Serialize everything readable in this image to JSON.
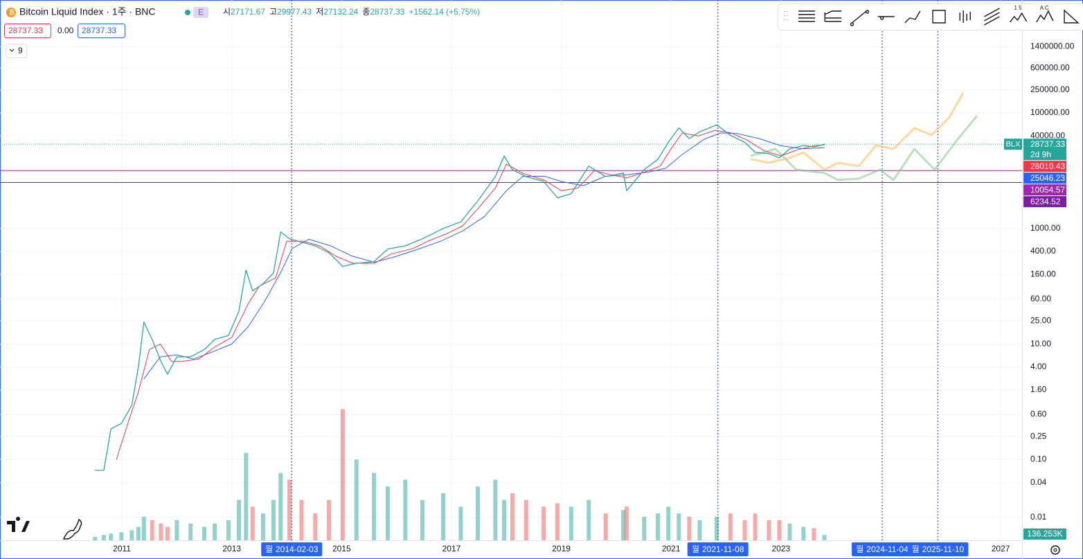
{
  "header": {
    "symbol": "Bitcoin Liquid Index · 1주 · BNC",
    "badge": "E",
    "ohlc": [
      {
        "key": "시",
        "value": "27171.67"
      },
      {
        "key": "고",
        "value": "29977.43"
      },
      {
        "key": "저",
        "value": "27132.24"
      },
      {
        "key": "종",
        "value": "28737.33"
      }
    ],
    "change": "+1562.14 (+5.75%)"
  },
  "inputs": [
    "28737.33",
    "0.00",
    "28737.33"
  ],
  "indicators_badge": "9",
  "toolbar": {
    "labels": [
      "1 5",
      "A C"
    ]
  },
  "chart_data": {
    "type": "line",
    "log": true,
    "grid": true,
    "xlim": [
      2008.78,
      2027.39
    ],
    "ylim": [
      0.004,
      9000000
    ],
    "xticks": [
      2011,
      2013,
      2015,
      2017,
      2019,
      2021,
      2023,
      2027
    ],
    "yticks": [
      {
        "value": 1400000,
        "label": "1400000.00"
      },
      {
        "value": 600000,
        "label": "600000.00"
      },
      {
        "value": 250000,
        "label": "250000.00"
      },
      {
        "value": 100000,
        "label": "100000.00"
      },
      {
        "value": 40000,
        "label": "40000.00"
      },
      {
        "value": 1000,
        "label": "1000.00"
      },
      {
        "value": 400,
        "label": "400.00"
      },
      {
        "value": 160,
        "label": "160.00"
      },
      {
        "value": 60,
        "label": "60.00"
      },
      {
        "value": 25,
        "label": "25.00"
      },
      {
        "value": 10,
        "label": "10.00"
      },
      {
        "value": 4,
        "label": "4.00"
      },
      {
        "value": 1.6,
        "label": "1.60"
      },
      {
        "value": 0.6,
        "label": "0.60"
      },
      {
        "value": 0.25,
        "label": "0.25"
      },
      {
        "value": 0.1,
        "label": "0.10"
      },
      {
        "value": 0.04,
        "label": "0.04"
      },
      {
        "value": 0.01,
        "label": "0.01"
      }
    ],
    "series": [
      {
        "name": "BLX",
        "color": "#26a69a",
        "width": 1.3,
        "x": [
          2010.51,
          2010.67,
          2010.8,
          2010.99,
          2011.18,
          2011.3,
          2011.4,
          2011.55,
          2011.71,
          2011.83,
          2012.0,
          2012.25,
          2012.5,
          2012.69,
          2012.94,
          2013.13,
          2013.26,
          2013.38,
          2013.57,
          2013.76,
          2013.89,
          2014.05,
          2014.27,
          2014.52,
          2014.77,
          2015.02,
          2015.27,
          2015.59,
          2015.84,
          2016.16,
          2016.47,
          2016.85,
          2017.17,
          2017.48,
          2017.8,
          2017.96,
          2018.11,
          2018.36,
          2018.68,
          2018.93,
          2019.18,
          2019.5,
          2019.81,
          2020.13,
          2020.19,
          2020.51,
          2020.76,
          2020.95,
          2021.14,
          2021.33,
          2021.52,
          2021.83,
          2022.08,
          2022.34,
          2022.53,
          2022.78,
          2022.97,
          2023.16,
          2023.41,
          2023.6,
          2023.79
        ],
        "values": [
          0.065,
          0.065,
          0.34,
          0.42,
          0.87,
          4,
          24,
          12,
          5,
          3,
          6,
          6,
          8,
          12,
          14,
          37,
          190,
          83,
          110,
          170,
          870,
          660,
          580,
          500,
          380,
          220,
          250,
          265,
          440,
          500,
          660,
          1000,
          1300,
          3000,
          7900,
          18000,
          10400,
          7900,
          6500,
          3400,
          4000,
          12000,
          7900,
          9100,
          4500,
          10400,
          15800,
          31000,
          55000,
          36000,
          47000,
          62000,
          41000,
          31000,
          20700,
          19700,
          16700,
          23800,
          27300,
          25800,
          28737.33
        ]
      },
      {
        "color": "#f23645",
        "width": 1,
        "x": [
          2010.9,
          2011.1,
          2011.3,
          2011.5,
          2011.7,
          2011.9,
          2012.1,
          2012.4,
          2012.7,
          2013.0,
          2013.3,
          2013.5,
          2013.8,
          2014.0,
          2014.3,
          2014.6,
          2014.9,
          2015.2,
          2015.6,
          2015.9,
          2016.3,
          2016.6,
          2016.9,
          2017.2,
          2017.5,
          2017.8,
          2018.0,
          2018.3,
          2018.7,
          2019.0,
          2019.3,
          2019.6,
          2019.9,
          2020.2,
          2020.5,
          2020.8,
          2021.0,
          2021.2,
          2021.5,
          2021.8,
          2022.1,
          2022.4,
          2022.7,
          2023.0,
          2023.3,
          2023.6,
          2023.79
        ],
        "values": [
          0.1,
          0.4,
          1.5,
          8,
          10,
          5,
          5,
          5.5,
          9,
          13,
          50,
          100,
          140,
          600,
          600,
          500,
          330,
          250,
          250,
          360,
          450,
          620,
          800,
          1100,
          2300,
          5000,
          13000,
          9000,
          6800,
          4500,
          5000,
          10000,
          8500,
          7500,
          9300,
          12000,
          24000,
          45000,
          40000,
          50000,
          45000,
          33000,
          22000,
          18000,
          23000,
          27000,
          28010.43
        ]
      },
      {
        "color": "#2962ff",
        "width": 1,
        "x": [
          2011.4,
          2011.7,
          2012.0,
          2012.3,
          2012.6,
          2013.0,
          2013.3,
          2013.6,
          2013.9,
          2014.1,
          2014.4,
          2014.8,
          2015.2,
          2015.6,
          2016.0,
          2016.4,
          2016.8,
          2017.2,
          2017.6,
          2018.0,
          2018.3,
          2018.7,
          2019.0,
          2019.4,
          2019.8,
          2020.2,
          2020.6,
          2020.9,
          2021.2,
          2021.6,
          2021.9,
          2022.2,
          2022.6,
          2023.0,
          2023.4,
          2023.79
        ],
        "values": [
          2.5,
          6,
          6.5,
          5.5,
          7,
          10,
          20,
          55,
          180,
          450,
          650,
          500,
          330,
          260,
          330,
          440,
          600,
          900,
          1600,
          4500,
          8000,
          8000,
          6500,
          5500,
          8000,
          8500,
          9500,
          11000,
          19000,
          35000,
          45000,
          44000,
          36000,
          27000,
          24000,
          25046.23
        ]
      },
      {
        "color": "rgba(255,183,77,0.55)",
        "width": 3,
        "x": [
          2022.46,
          2022.78,
          2023.16,
          2023.41,
          2023.79,
          2024.04,
          2024.42,
          2024.73,
          2025.05,
          2025.43,
          2025.74,
          2026.06,
          2026.31
        ],
        "values": [
          15800,
          13700,
          16700,
          20700,
          10400,
          13700,
          12000,
          27400,
          23800,
          54600,
          41400,
          82500,
          216000
        ]
      },
      {
        "color": "rgba(129,199,132,0.55)",
        "width": 3,
        "x": [
          2022.46,
          2022.9,
          2023.28,
          2023.79,
          2024.04,
          2024.42,
          2024.8,
          2025.05,
          2025.43,
          2025.8,
          2026.18,
          2026.56
        ],
        "values": [
          18100,
          23800,
          10400,
          9100,
          6900,
          7300,
          10400,
          6900,
          23800,
          10400,
          31400,
          87000
        ]
      }
    ],
    "volume": {
      "ylim": [
        0,
        3500000
      ],
      "color_up": "rgba(38,166,154,0.5)",
      "color_down": "rgba(239,83,80,0.5)",
      "last_label": "136.253K",
      "values": [
        85000,
        136000,
        170000,
        204000,
        255000,
        340000,
        595000,
        510000,
        425000,
        340000,
        510000,
        425000,
        340000,
        425000,
        510000,
        1020000,
        2210000,
        850000,
        680000,
        1020000,
        1700000,
        1530000,
        1020000,
        680000,
        1020000,
        3315000,
        2040000,
        1700000,
        1360000,
        1530000,
        1020000,
        1190000,
        850000,
        1360000,
        1530000,
        1020000,
        1190000,
        1020000,
        850000,
        935000,
        850000,
        1020000,
        680000,
        765000,
        850000,
        595000,
        680000,
        850000,
        680000,
        595000,
        510000,
        595000,
        680000,
        510000,
        680000,
        510000,
        510000,
        425000,
        340000,
        306000,
        136253
      ]
    },
    "hlines": [
      {
        "value": 10054.57,
        "color": "#9c27b0"
      },
      {
        "value": 6234.52,
        "color": "#7b1fa2"
      }
    ],
    "price_tags": [
      {
        "name": "BLX",
        "value": 28737.33,
        "countdown": "2d 9h",
        "color": "#26a69a"
      },
      {
        "value": 28010.43,
        "color": "#f23645"
      },
      {
        "value": 25046.23,
        "color": "#2962ff"
      }
    ],
    "vlines": [
      {
        "weekday": "월",
        "date": "2014-02-03"
      },
      {
        "weekday": "월",
        "date": "2021-11-08"
      },
      {
        "weekday": "월",
        "date": "2024-11-04"
      },
      {
        "weekday": "월",
        "date": "2025-11-10"
      }
    ]
  }
}
